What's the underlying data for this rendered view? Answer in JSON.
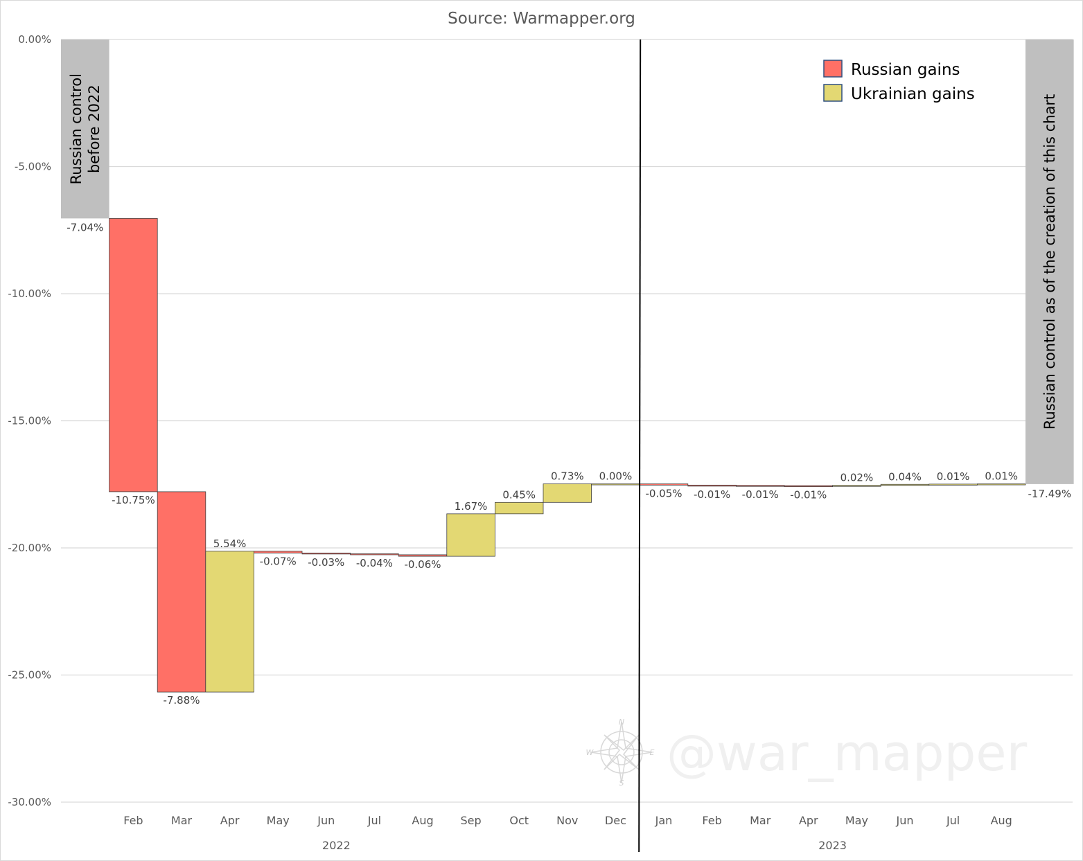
{
  "chart_data": {
    "type": "bar",
    "subtype": "waterfall",
    "title": "Source:  Warmapper.org",
    "ylim": [
      -30,
      0
    ],
    "yticks": [
      0,
      -5,
      -10,
      -15,
      -20,
      -25,
      -30
    ],
    "ytick_labels": [
      "0.00%",
      "-5.00%",
      "-10.00%",
      "-15.00%",
      "-20.00%",
      "-25.00%",
      "-30.00%"
    ],
    "grid": true,
    "legend_position": "top-right",
    "colors": {
      "russian": "#ff7066",
      "ukrainian": "#e3d873",
      "total": "#bfbfbf",
      "grid": "#d9d9d9"
    },
    "legend": [
      {
        "label": "Russian gains",
        "color": "#ff7066"
      },
      {
        "label": "Ukrainian gains",
        "color": "#e3d873"
      }
    ],
    "start": {
      "label": "Russian control before 2022",
      "value": -7.04,
      "value_label": "-7.04%"
    },
    "end": {
      "label": "Russian control as of the creation of this chart",
      "value": -17.49,
      "value_label": "-17.49%"
    },
    "year_groups": [
      {
        "label": "2022",
        "months": 11
      },
      {
        "label": "2023",
        "months": 8
      }
    ],
    "steps": [
      {
        "month": "Feb",
        "year": "2022",
        "change": -10.75,
        "label": "-10.75%",
        "type": "russian"
      },
      {
        "month": "Mar",
        "year": "2022",
        "change": -7.88,
        "label": "-7.88%",
        "type": "russian"
      },
      {
        "month": "Apr",
        "year": "2022",
        "change": 5.54,
        "label": "5.54%",
        "type": "ukrainian"
      },
      {
        "month": "May",
        "year": "2022",
        "change": -0.07,
        "label": "-0.07%",
        "type": "russian"
      },
      {
        "month": "Jun",
        "year": "2022",
        "change": -0.03,
        "label": "-0.03%",
        "type": "russian"
      },
      {
        "month": "Jul",
        "year": "2022",
        "change": -0.04,
        "label": "-0.04%",
        "type": "russian"
      },
      {
        "month": "Aug",
        "year": "2022",
        "change": -0.06,
        "label": "-0.06%",
        "type": "russian"
      },
      {
        "month": "Sep",
        "year": "2022",
        "change": 1.67,
        "label": "1.67%",
        "type": "ukrainian"
      },
      {
        "month": "Oct",
        "year": "2022",
        "change": 0.45,
        "label": "0.45%",
        "type": "ukrainian"
      },
      {
        "month": "Nov",
        "year": "2022",
        "change": 0.73,
        "label": "0.73%",
        "type": "ukrainian"
      },
      {
        "month": "Dec",
        "year": "2022",
        "change": 0.0,
        "label": "0.00%",
        "type": "ukrainian"
      },
      {
        "month": "Jan",
        "year": "2023",
        "change": -0.05,
        "label": "-0.05%",
        "type": "russian"
      },
      {
        "month": "Feb",
        "year": "2023",
        "change": -0.01,
        "label": "-0.01%",
        "type": "russian"
      },
      {
        "month": "Mar",
        "year": "2023",
        "change": -0.01,
        "label": "-0.01%",
        "type": "russian"
      },
      {
        "month": "Apr",
        "year": "2023",
        "change": -0.01,
        "label": "-0.01%",
        "type": "russian"
      },
      {
        "month": "May",
        "year": "2023",
        "change": 0.02,
        "label": "0.02%",
        "type": "ukrainian"
      },
      {
        "month": "Jun",
        "year": "2023",
        "change": 0.04,
        "label": "0.04%",
        "type": "ukrainian"
      },
      {
        "month": "Jul",
        "year": "2023",
        "change": 0.01,
        "label": "0.01%",
        "type": "ukrainian"
      },
      {
        "month": "Aug",
        "year": "2023",
        "change": 0.01,
        "label": "0.01%",
        "type": "ukrainian"
      }
    ],
    "watermark": "@war_mapper",
    "compass_letters": {
      "n": "N",
      "e": "E",
      "s": "S",
      "w": "W"
    }
  }
}
